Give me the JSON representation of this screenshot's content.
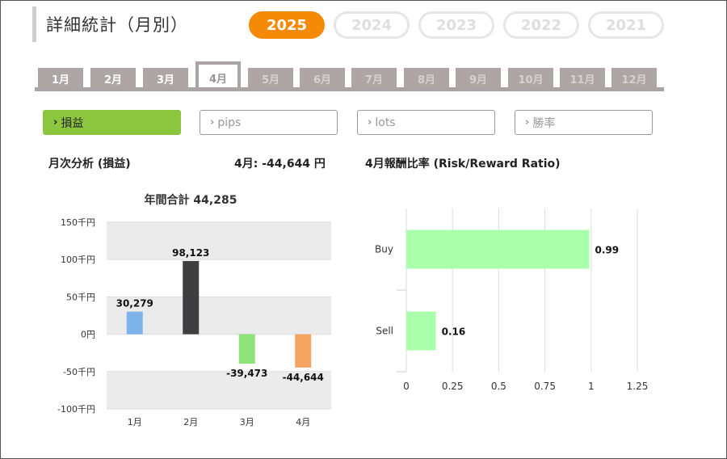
{
  "header": {
    "title": "詳細統計（月別）",
    "years": [
      {
        "label": "2025",
        "active": true
      },
      {
        "label": "2024",
        "active": false
      },
      {
        "label": "2023",
        "active": false
      },
      {
        "label": "2022",
        "active": false
      },
      {
        "label": "2021",
        "active": false
      }
    ]
  },
  "months": [
    {
      "label": "1月",
      "state": "normal"
    },
    {
      "label": "2月",
      "state": "normal"
    },
    {
      "label": "3月",
      "state": "normal"
    },
    {
      "label": "4月",
      "state": "active"
    },
    {
      "label": "5月",
      "state": "dim"
    },
    {
      "label": "6月",
      "state": "dim"
    },
    {
      "label": "7月",
      "state": "dim"
    },
    {
      "label": "8月",
      "state": "dim"
    },
    {
      "label": "9月",
      "state": "dim"
    },
    {
      "label": "10月",
      "state": "dim"
    },
    {
      "label": "11月",
      "state": "dim"
    },
    {
      "label": "12月",
      "state": "dim"
    }
  ],
  "filters": [
    {
      "label": "損益",
      "active": true
    },
    {
      "label": "pips",
      "active": false
    },
    {
      "label": "lots",
      "active": false
    },
    {
      "label": "勝率",
      "active": false
    }
  ],
  "colors": {
    "accent_orange": "#f58a07",
    "filter_green": "#8cc63f",
    "tab_gray": "#aea5a5"
  },
  "left_section": {
    "heading": "月次分析 (損益)",
    "month_summary": "4月:  -44,644 円"
  },
  "right_section": {
    "heading": "4月報酬比率 (Risk/Reward Ratio)"
  },
  "chart_data": [
    {
      "type": "bar",
      "title": "年間合計 44,285",
      "categories": [
        "1月",
        "2月",
        "3月",
        "4月"
      ],
      "values": [
        30279,
        98123,
        -39473,
        -44644
      ],
      "value_labels": [
        "30,279",
        "98,123",
        "-39,473",
        "-44,644"
      ],
      "colors": [
        "#7db3e8",
        "#3f3f41",
        "#8ee27a",
        "#f6a462"
      ],
      "ylim": [
        -100000,
        150000
      ],
      "yticks": [
        150000,
        100000,
        50000,
        0,
        -50000,
        -100000
      ],
      "ytick_labels": [
        "150千円",
        "100千円",
        "50千円",
        "0円",
        "-50千円",
        "-100千円"
      ],
      "grid": "alternating bands",
      "xlabel": "",
      "ylabel": ""
    },
    {
      "type": "bar",
      "orientation": "horizontal",
      "categories": [
        "Buy",
        "Sell"
      ],
      "values": [
        0.99,
        0.16
      ],
      "value_labels": [
        "0.99",
        "0.16"
      ],
      "color": "#aaffaa",
      "xlim": [
        0,
        1.25
      ],
      "xticks": [
        0,
        0.25,
        0.5,
        0.75,
        1,
        1.25
      ],
      "xtick_labels": [
        "0",
        "0.25",
        "0.5",
        "0.75",
        "1",
        "1.25"
      ],
      "grid": true
    }
  ]
}
